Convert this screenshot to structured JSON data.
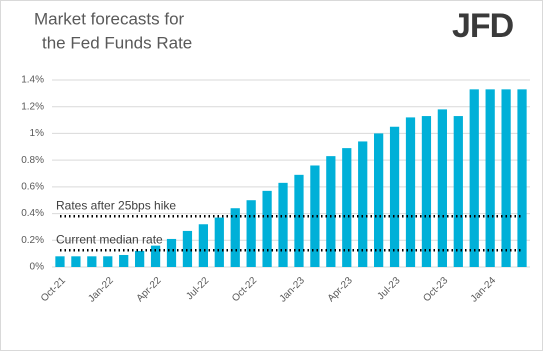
{
  "chart_data": {
    "type": "bar",
    "title_lines": [
      "Market forecasts for",
      "the Fed Funds Rate"
    ],
    "logo": "JFD",
    "categories": [
      "Oct-21",
      null,
      null,
      "Jan-22",
      null,
      null,
      "Apr-22",
      null,
      null,
      "Jul-22",
      null,
      null,
      "Oct-22",
      null,
      null,
      "Jan-23",
      null,
      null,
      "Apr-23",
      null,
      null,
      "Jul-23",
      null,
      null,
      "Oct-23",
      null,
      null,
      "Jan-24",
      null,
      null
    ],
    "values": [
      0.08,
      0.08,
      0.08,
      0.08,
      0.09,
      0.12,
      0.16,
      0.21,
      0.27,
      0.32,
      0.37,
      0.44,
      0.5,
      0.57,
      0.63,
      0.69,
      0.76,
      0.83,
      0.89,
      0.94,
      1.0,
      1.05,
      1.12,
      1.13,
      1.18,
      1.13,
      1.33,
      1.33,
      1.33,
      1.33
    ],
    "color": "#00b0d8",
    "ylim": [
      0,
      1.4
    ],
    "yticks": [
      {
        "value": 0,
        "label": "0%"
      },
      {
        "value": 0.2,
        "label": "0.2%"
      },
      {
        "value": 0.4,
        "label": "0.4%"
      },
      {
        "value": 0.6,
        "label": "0.6%"
      },
      {
        "value": 0.8,
        "label": "0.8%"
      },
      {
        "value": 1,
        "label": "1%"
      },
      {
        "value": 1.2,
        "label": "1.2%"
      },
      {
        "value": 1.4,
        "label": "1.4%"
      }
    ],
    "grid": true,
    "reference_lines": [
      {
        "label": "Rates after 25bps hike",
        "value": 0.38
      },
      {
        "label": "Current median rate",
        "value": 0.125
      }
    ]
  }
}
